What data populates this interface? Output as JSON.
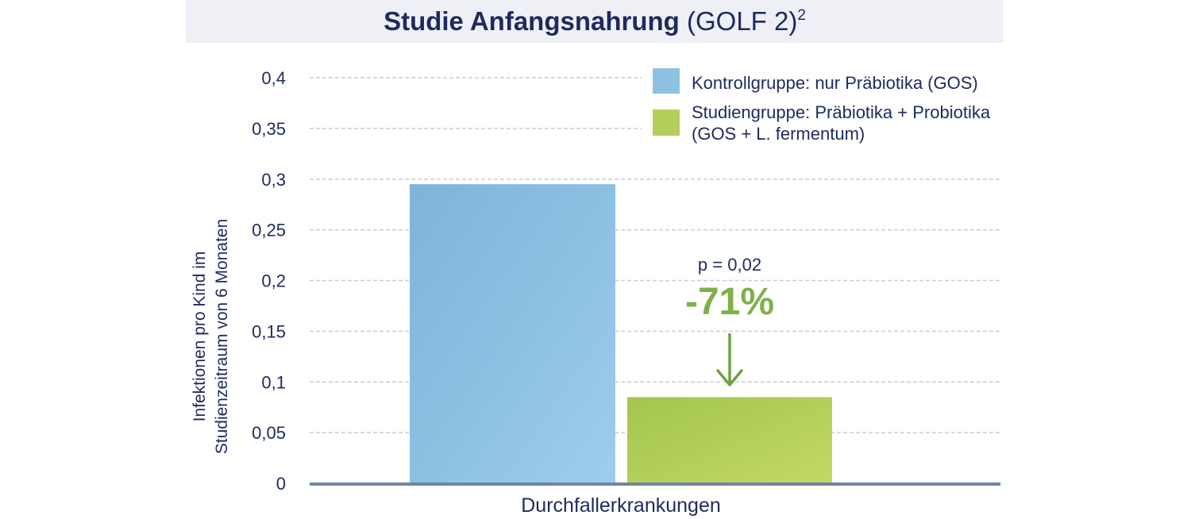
{
  "title": {
    "bold": "Studie Anfangsnahrung",
    "light": "(GOLF 2)",
    "superscript": "2"
  },
  "chart_data": {
    "type": "bar",
    "categories": [
      "Durchfallerkrankungen"
    ],
    "series": [
      {
        "name": "Kontrollgruppe: nur Präbiotika (GOS)",
        "values": [
          0.295
        ],
        "color": "#8ec2e2"
      },
      {
        "name_lines": [
          "Studiengruppe: Präbiotika + Probiotika",
          "(GOS + L. fermentum)"
        ],
        "values": [
          0.085
        ],
        "color": "#b4cf5c"
      }
    ],
    "ylabel_lines": [
      "Infektionen pro Kind im",
      "Studienzeitraum von 6 Monaten"
    ],
    "ylim": [
      0,
      0.4
    ],
    "yticks": [
      0,
      0.05,
      0.1,
      0.15,
      0.2,
      0.25,
      0.3,
      0.35,
      0.4
    ],
    "ytick_labels": [
      "0",
      "0,05",
      "0,1",
      "0,15",
      "0,2",
      "0,25",
      "0,3",
      "0,35",
      "0,4"
    ],
    "grid": true,
    "legend_position": "top-right",
    "annotation": {
      "pvalue": "p = 0,02",
      "change": "-71%",
      "arrow_color": "#6fa23f"
    },
    "axis_color": "#6f86a3",
    "grid_color": "#c8ccd6"
  }
}
